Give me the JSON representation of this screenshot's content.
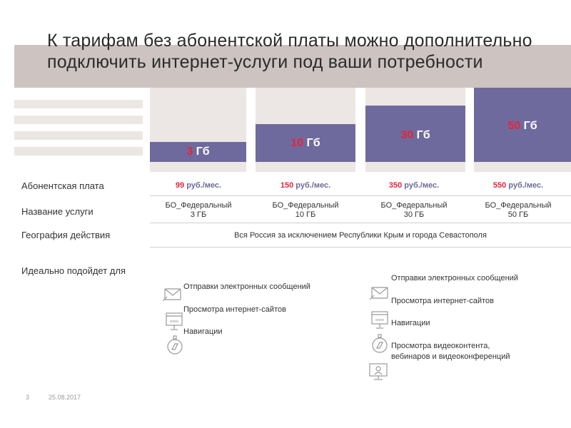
{
  "title": "К тарифам без абонентской платы можно дополнительно подключить интернет-услуги под ваши потребности",
  "tiers": [
    {
      "num": "3",
      "unit": " Гб"
    },
    {
      "num": "10",
      "unit": " Гб"
    },
    {
      "num": "30",
      "unit": " Гб"
    },
    {
      "num": "50",
      "unit": " Гб"
    }
  ],
  "rows": {
    "fee_label": "Абонентская плата",
    "service_label": "Название услуги",
    "geo_label": "География действия",
    "ideal_label": "Идеально подойдет для"
  },
  "prices": [
    {
      "num": "99",
      "unit": " руб./мес."
    },
    {
      "num": "150",
      "unit": " руб./мес."
    },
    {
      "num": "350",
      "unit": " руб./мес."
    },
    {
      "num": "550",
      "unit": " руб./мес."
    }
  ],
  "services": [
    {
      "line1": "БО_Федеральный",
      "line2": "3 ГБ"
    },
    {
      "line1": "БО_Федеральный",
      "line2": "10 ГБ"
    },
    {
      "line1": "БО_Федеральный",
      "line2": "30 ГБ"
    },
    {
      "line1": "БО_Федеральный",
      "line2": "50 ГБ"
    }
  ],
  "geography": "Вся Россия за исключением Республики Крым и города Севастополя",
  "features_left": [
    "Отправки электронных сообщений",
    "Просмотра интернет-сайтов",
    "Навигации"
  ],
  "features_right": [
    "Отправки электронных сообщений",
    "Просмотра интернет-сайтов",
    "Навигации",
    "Просмотра видеоконтента,",
    "вебинаров и видеоконференций"
  ],
  "footer": {
    "page": "3",
    "date": "25.08.2017"
  },
  "colors": {
    "accent": "#e8233a",
    "tier_bg": "#6f6a9d",
    "band": "#cdc3c0"
  }
}
